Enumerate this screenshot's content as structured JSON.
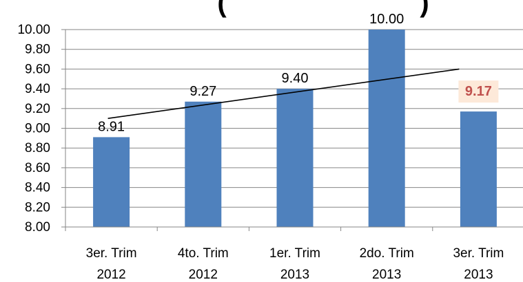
{
  "chart_data": {
    "type": "bar",
    "title_fragments": [
      "(",
      ")"
    ],
    "categories": [
      [
        "3er. Trim",
        "2012"
      ],
      [
        "4to. Trim",
        "2012"
      ],
      [
        "1er. Trim",
        "2013"
      ],
      [
        "2do. Trim",
        "2013"
      ],
      [
        "3er. Trim",
        "2013"
      ]
    ],
    "values": [
      8.91,
      9.27,
      9.4,
      10.0,
      9.17
    ],
    "data_labels": [
      "8.91",
      "9.27",
      "9.40",
      "10.00",
      "9.17"
    ],
    "highlighted_index": 4,
    "ylim": [
      8.0,
      10.0
    ],
    "yticks": [
      "8.00",
      "8.20",
      "8.40",
      "8.60",
      "8.80",
      "9.00",
      "9.20",
      "9.40",
      "9.60",
      "9.80",
      "10.00"
    ],
    "grid": true,
    "legend": "none",
    "trendline": {
      "type": "linear",
      "start": 9.1,
      "end": 9.6
    },
    "colors": {
      "bar": "#4f81bd",
      "grid": "#868686",
      "trendline": "#000000",
      "highlight_text": "#c0504d",
      "highlight_bg": "#fde9d9"
    }
  }
}
